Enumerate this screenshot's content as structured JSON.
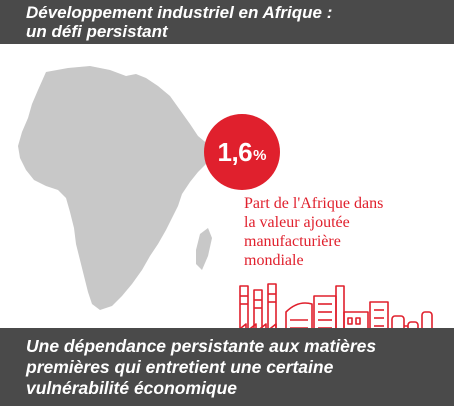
{
  "header": {
    "title_lines": [
      "Développement industriel en Afrique :",
      "un défi persistant"
    ]
  },
  "stat": {
    "value": "1,6",
    "unit": "%",
    "description_lines": [
      "Part de l'Afrique dans",
      "la valeur ajoutée",
      "manufacturière",
      "mondiale"
    ]
  },
  "footer": {
    "lines": [
      "Une dépendance persistante aux matières",
      "premières qui entretient une certaine",
      "vulnérabilité économique"
    ]
  },
  "colors": {
    "accent": "#e0202d",
    "banner": "#4a4a4a",
    "map": "#c8c8c8"
  },
  "icons": {
    "map": "africa-map-icon",
    "factory": "factory-icon"
  }
}
